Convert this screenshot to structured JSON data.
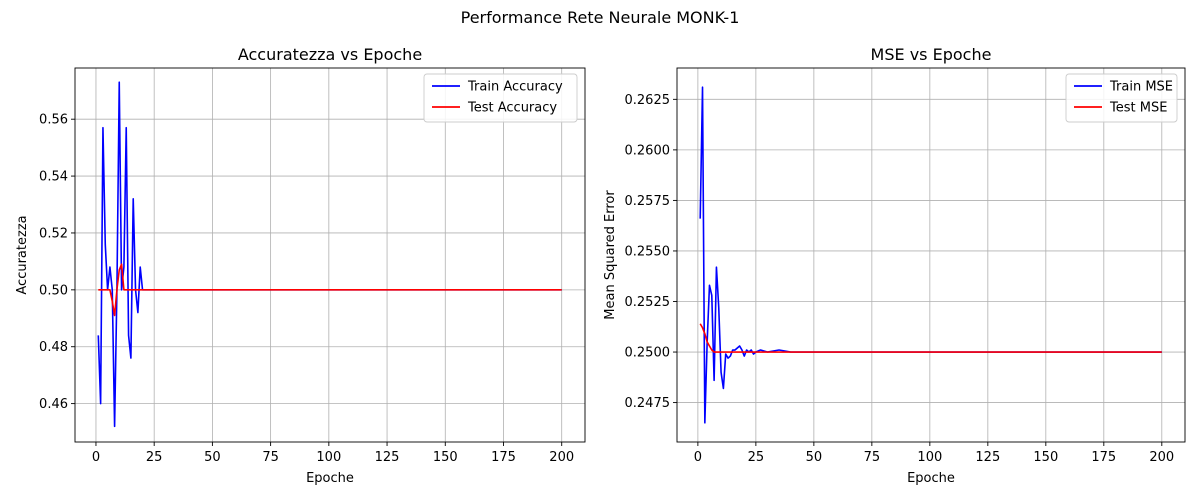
{
  "figure": {
    "suptitle": "Performance Rete Neurale MONK-1"
  },
  "chart_data": [
    {
      "type": "line",
      "title": "Accuratezza vs Epoche",
      "xlabel": "Epoche",
      "ylabel": "Accuratezza",
      "xlim": [
        -9,
        210
      ],
      "ylim": [
        0.4465,
        0.578
      ],
      "xticks": [
        0,
        25,
        50,
        75,
        100,
        125,
        150,
        175,
        200
      ],
      "yticks": [
        0.46,
        0.48,
        0.5,
        0.52,
        0.54,
        0.56
      ],
      "ytick_labels": [
        "0.46",
        "0.48",
        "0.50",
        "0.52",
        "0.54",
        "0.56"
      ],
      "grid": true,
      "legend": "top-right",
      "series": [
        {
          "name": "Train Accuracy",
          "color": "#0000ff",
          "points": [
            [
              1,
              0.484
            ],
            [
              2,
              0.46
            ],
            [
              3,
              0.557
            ],
            [
              4,
              0.516
            ],
            [
              5,
              0.5
            ],
            [
              6,
              0.508
            ],
            [
              7,
              0.5
            ],
            [
              8,
              0.452
            ],
            [
              9,
              0.5
            ],
            [
              10,
              0.573
            ],
            [
              11,
              0.5
            ],
            [
              12,
              0.508
            ],
            [
              13,
              0.557
            ],
            [
              14,
              0.484
            ],
            [
              15,
              0.476
            ],
            [
              16,
              0.532
            ],
            [
              17,
              0.5
            ],
            [
              18,
              0.492
            ],
            [
              19,
              0.508
            ],
            [
              20,
              0.5
            ],
            [
              200,
              0.5
            ]
          ]
        },
        {
          "name": "Test Accuracy",
          "color": "#ff0000",
          "points": [
            [
              1,
              0.5
            ],
            [
              6,
              0.5
            ],
            [
              7,
              0.496
            ],
            [
              8,
              0.491
            ],
            [
              9,
              0.5
            ],
            [
              10,
              0.507
            ],
            [
              11,
              0.509
            ],
            [
              12,
              0.5
            ],
            [
              200,
              0.5
            ]
          ]
        }
      ]
    },
    {
      "type": "line",
      "title": "MSE vs Epoche",
      "xlabel": "Epoche",
      "ylabel": "Mean Squared Error",
      "xlim": [
        -9,
        210
      ],
      "ylim": [
        0.24555,
        0.26405
      ],
      "xticks": [
        0,
        25,
        50,
        75,
        100,
        125,
        150,
        175,
        200
      ],
      "yticks": [
        0.2475,
        0.25,
        0.2525,
        0.255,
        0.2575,
        0.26,
        0.2625
      ],
      "ytick_labels": [
        "0.2475",
        "0.2500",
        "0.2525",
        "0.2550",
        "0.2575",
        "0.2600",
        "0.2625"
      ],
      "grid": true,
      "legend": "top-right",
      "series": [
        {
          "name": "Train MSE",
          "color": "#0000ff",
          "points": [
            [
              1,
              0.2566
            ],
            [
              2,
              0.2631
            ],
            [
              3,
              0.2465
            ],
            [
              4,
              0.2505
            ],
            [
              5,
              0.2533
            ],
            [
              6,
              0.2528
            ],
            [
              7,
              0.2486
            ],
            [
              8,
              0.2542
            ],
            [
              9,
              0.2522
            ],
            [
              10,
              0.249
            ],
            [
              11,
              0.2482
            ],
            [
              12,
              0.2499
            ],
            [
              13,
              0.2497
            ],
            [
              14,
              0.2498
            ],
            [
              15,
              0.2501
            ],
            [
              16,
              0.2501
            ],
            [
              17,
              0.2502
            ],
            [
              18,
              0.2503
            ],
            [
              19,
              0.2501
            ],
            [
              20,
              0.2498
            ],
            [
              21,
              0.2501
            ],
            [
              22,
              0.25
            ],
            [
              23,
              0.2501
            ],
            [
              24,
              0.2499
            ],
            [
              25,
              0.25
            ],
            [
              27,
              0.2501
            ],
            [
              30,
              0.25
            ],
            [
              35,
              0.2501
            ],
            [
              40,
              0.25
            ],
            [
              200,
              0.25
            ]
          ]
        },
        {
          "name": "Test MSE",
          "color": "#ff0000",
          "points": [
            [
              1,
              0.2514
            ],
            [
              2,
              0.2512
            ],
            [
              3,
              0.2509
            ],
            [
              4,
              0.2505
            ],
            [
              5,
              0.2503
            ],
            [
              6,
              0.2501
            ],
            [
              7,
              0.25
            ],
            [
              8,
              0.25
            ],
            [
              10,
              0.25
            ],
            [
              200,
              0.25
            ]
          ]
        }
      ]
    }
  ]
}
